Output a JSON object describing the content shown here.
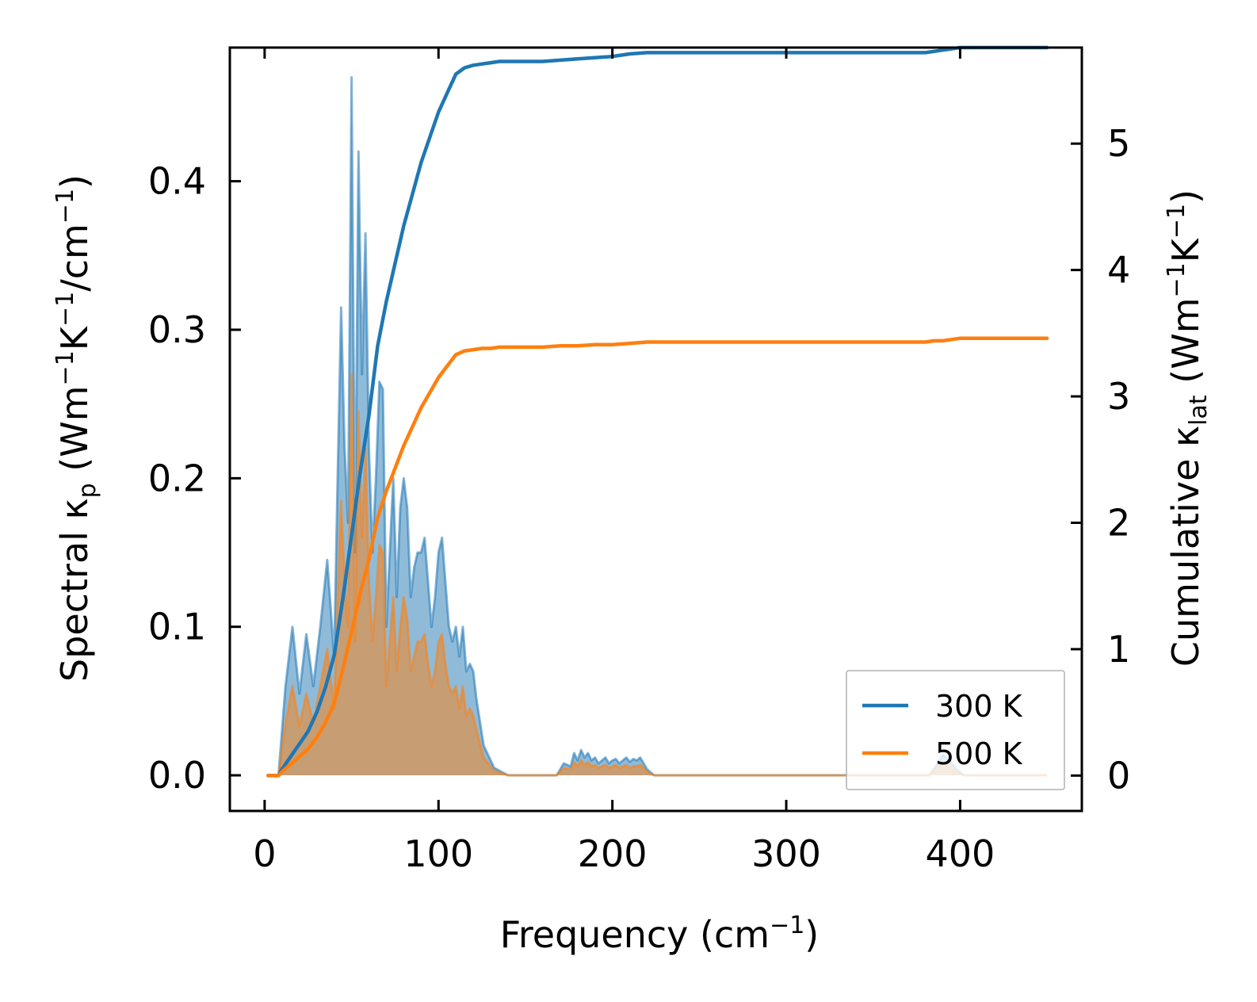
{
  "chart_data": {
    "type": "line",
    "xlabel": {
      "base": "Frequency (cm",
      "sup": "−1",
      "tail": ")"
    },
    "ylabel_left": {
      "p1": "Spectral κ",
      "sub": "p",
      "p2": " (Wm",
      "sup1": "−1",
      "p3": "K",
      "sup2": "−1",
      "p4": "/cm",
      "sup3": "−1",
      "p5": ")"
    },
    "ylabel_right": {
      "p1": "Cumulative κ",
      "sub": "lat",
      "p2": " (Wm",
      "sup1": "−1",
      "p3": "K",
      "sup2": "−1",
      "p4": ")"
    },
    "xlim": [
      -20,
      470
    ],
    "ylim_left": [
      -0.024,
      0.49
    ],
    "ylim_right": [
      -0.28,
      5.76
    ],
    "x_ticks": [
      0,
      100,
      200,
      300,
      400
    ],
    "x_tick_labels": [
      "0",
      "100",
      "200",
      "300",
      "400"
    ],
    "y_left_ticks": [
      0.0,
      0.1,
      0.2,
      0.3,
      0.4
    ],
    "y_left_tick_labels": [
      "0.0",
      "0.1",
      "0.2",
      "0.3",
      "0.4"
    ],
    "y_right_ticks": [
      0,
      1,
      2,
      3,
      4,
      5
    ],
    "y_right_tick_labels": [
      "0",
      "1",
      "2",
      "3",
      "4",
      "5"
    ],
    "legend": {
      "position": "lower right",
      "entries": [
        "300 K",
        "500 K"
      ]
    },
    "colors": {
      "series_300": "#1f77b4",
      "series_500": "#ff7f0e"
    },
    "spectral_x": [
      2,
      8,
      12,
      16,
      20,
      24,
      28,
      32,
      36,
      40,
      42,
      44,
      46,
      48,
      50,
      52,
      54,
      56,
      58,
      60,
      62,
      64,
      66,
      68,
      70,
      72,
      74,
      76,
      78,
      80,
      82,
      84,
      86,
      88,
      90,
      92,
      94,
      96,
      98,
      100,
      102,
      104,
      106,
      108,
      110,
      112,
      114,
      116,
      118,
      120,
      122,
      126,
      132,
      140,
      150,
      160,
      168,
      172,
      176,
      178,
      180,
      182,
      184,
      186,
      188,
      190,
      192,
      194,
      196,
      198,
      200,
      202,
      204,
      206,
      208,
      210,
      212,
      214,
      216,
      218,
      220,
      224,
      230,
      300,
      378,
      382,
      386,
      390,
      394,
      398,
      402,
      410,
      450
    ],
    "series": [
      {
        "name": "300 K",
        "spectral": [
          0,
          0,
          0.06,
          0.1,
          0.055,
          0.095,
          0.06,
          0.1,
          0.145,
          0.08,
          0.2,
          0.315,
          0.22,
          0.17,
          0.47,
          0.15,
          0.42,
          0.27,
          0.365,
          0.22,
          0.15,
          0.2,
          0.265,
          0.26,
          0.1,
          0.15,
          0.2,
          0.12,
          0.18,
          0.2,
          0.18,
          0.12,
          0.14,
          0.15,
          0.15,
          0.16,
          0.13,
          0.1,
          0.12,
          0.15,
          0.16,
          0.13,
          0.1,
          0.09,
          0.1,
          0.08,
          0.1,
          0.07,
          0.075,
          0.07,
          0.05,
          0.02,
          0.005,
          0,
          0,
          0,
          0,
          0.008,
          0.006,
          0.015,
          0.01,
          0.017,
          0.012,
          0.015,
          0.01,
          0.012,
          0.008,
          0.01,
          0.012,
          0.008,
          0.01,
          0.011,
          0.008,
          0.01,
          0.012,
          0.009,
          0.011,
          0.01,
          0.012,
          0.008,
          0.004,
          0,
          0,
          0,
          0,
          0,
          0.006,
          0.014,
          0.01,
          0.004,
          0,
          0,
          0
        ],
        "cumulative_x": [
          2,
          8,
          10,
          15,
          20,
          25,
          30,
          35,
          40,
          45,
          50,
          55,
          60,
          65,
          70,
          75,
          80,
          85,
          90,
          95,
          100,
          105,
          110,
          115,
          120,
          125,
          130,
          135,
          140,
          150,
          160,
          170,
          180,
          190,
          200,
          210,
          220,
          230,
          300,
          380,
          385,
          390,
          395,
          400,
          410,
          450
        ],
        "cumulative": [
          0,
          0,
          0.05,
          0.15,
          0.25,
          0.35,
          0.5,
          0.7,
          0.95,
          1.4,
          1.9,
          2.4,
          2.85,
          3.4,
          3.75,
          4.05,
          4.35,
          4.6,
          4.85,
          5.05,
          5.25,
          5.4,
          5.55,
          5.6,
          5.62,
          5.63,
          5.64,
          5.65,
          5.65,
          5.65,
          5.65,
          5.66,
          5.67,
          5.68,
          5.69,
          5.71,
          5.72,
          5.72,
          5.72,
          5.72,
          5.73,
          5.74,
          5.75,
          5.76,
          5.76,
          5.76
        ]
      },
      {
        "name": "500 K",
        "spectral": [
          0,
          0,
          0.035,
          0.06,
          0.033,
          0.055,
          0.035,
          0.06,
          0.085,
          0.045,
          0.12,
          0.185,
          0.13,
          0.1,
          0.27,
          0.09,
          0.245,
          0.16,
          0.22,
          0.13,
          0.09,
          0.12,
          0.155,
          0.15,
          0.06,
          0.09,
          0.12,
          0.07,
          0.1,
          0.12,
          0.105,
          0.07,
          0.08,
          0.09,
          0.09,
          0.095,
          0.075,
          0.06,
          0.07,
          0.09,
          0.095,
          0.075,
          0.06,
          0.055,
          0.06,
          0.045,
          0.06,
          0.04,
          0.045,
          0.04,
          0.03,
          0.012,
          0.003,
          0,
          0,
          0,
          0,
          0.005,
          0.004,
          0.009,
          0.006,
          0.01,
          0.007,
          0.009,
          0.006,
          0.007,
          0.005,
          0.006,
          0.007,
          0.005,
          0.006,
          0.007,
          0.005,
          0.006,
          0.007,
          0.005,
          0.006,
          0.006,
          0.007,
          0.005,
          0.002,
          0,
          0,
          0,
          0,
          0,
          0.004,
          0.008,
          0.006,
          0.002,
          0,
          0,
          0
        ],
        "cumulative_x": [
          2,
          8,
          10,
          15,
          20,
          25,
          30,
          35,
          40,
          45,
          50,
          55,
          60,
          65,
          70,
          75,
          80,
          85,
          90,
          95,
          100,
          105,
          110,
          115,
          120,
          125,
          130,
          135,
          140,
          150,
          160,
          170,
          180,
          190,
          200,
          210,
          220,
          230,
          300,
          380,
          385,
          390,
          395,
          400,
          410,
          450
        ],
        "cumulative": [
          0,
          0,
          0.03,
          0.09,
          0.15,
          0.21,
          0.3,
          0.42,
          0.57,
          0.84,
          1.14,
          1.44,
          1.71,
          2.04,
          2.25,
          2.43,
          2.61,
          2.76,
          2.91,
          3.03,
          3.15,
          3.24,
          3.33,
          3.36,
          3.37,
          3.38,
          3.38,
          3.39,
          3.39,
          3.39,
          3.39,
          3.4,
          3.4,
          3.41,
          3.41,
          3.42,
          3.43,
          3.43,
          3.43,
          3.43,
          3.44,
          3.44,
          3.45,
          3.46,
          3.46,
          3.46
        ]
      }
    ]
  }
}
